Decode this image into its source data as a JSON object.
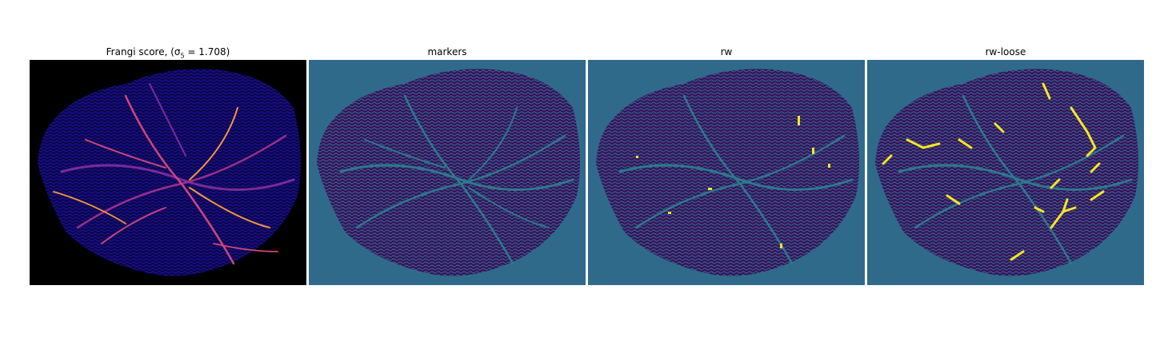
{
  "figure": {
    "panels": [
      {
        "title": "Frangi score, (σ",
        "title_sub": "5",
        "title_tail": " = 1.708)",
        "colormap": "plasma",
        "background": "#000000"
      },
      {
        "title": "markers",
        "colormap": "viridis",
        "background": "#2f6a8b"
      },
      {
        "title": "rw",
        "colormap": "viridis",
        "background": "#2f6a8b"
      },
      {
        "title": "rw-loose",
        "colormap": "viridis",
        "background": "#2f6a8b"
      }
    ]
  },
  "colors": {
    "tissue_dark": "#3b0f5c",
    "tissue_blue": "#1a0f9a",
    "vessel_teal": "#2c7a8c",
    "highlight_yellow": "#f6e626",
    "frangi_hot": "#f89540",
    "frangi_mid": "#cc4778"
  }
}
